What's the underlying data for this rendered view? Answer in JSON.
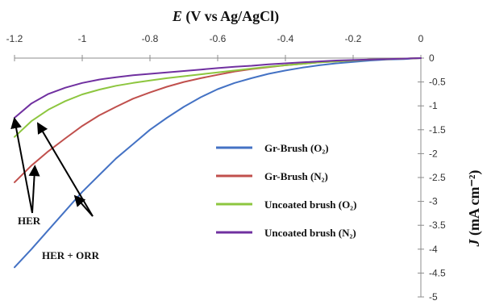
{
  "chart_data": {
    "type": "line",
    "title": "",
    "xlabel_italic": "E",
    "xlabel_rest": " (V vs Ag/AgCl)",
    "ylabel_italic": "J",
    "ylabel_rest": " (mA cm⁻²)",
    "xlim": [
      -1.2,
      0
    ],
    "ylim": [
      -5,
      0
    ],
    "x_ticks": [
      "-1.2",
      "-1",
      "-0.8",
      "-0.6",
      "-0.4",
      "-0.2",
      "0"
    ],
    "y_ticks": [
      "0",
      "-0.5",
      "-1",
      "-1.5",
      "-2",
      "-2.5",
      "-3",
      "-3.5",
      "-4",
      "-4.5",
      "-5"
    ],
    "series": [
      {
        "name": "Gr-Brush (O₂)",
        "color": "#4472c4",
        "points": [
          [
            -1.2,
            -4.38
          ],
          [
            -1.15,
            -4.0
          ],
          [
            -1.1,
            -3.6
          ],
          [
            -1.05,
            -3.2
          ],
          [
            -1.0,
            -2.8
          ],
          [
            -0.95,
            -2.45
          ],
          [
            -0.9,
            -2.1
          ],
          [
            -0.85,
            -1.8
          ],
          [
            -0.8,
            -1.5
          ],
          [
            -0.75,
            -1.25
          ],
          [
            -0.7,
            -1.02
          ],
          [
            -0.65,
            -0.82
          ],
          [
            -0.6,
            -0.65
          ],
          [
            -0.55,
            -0.52
          ],
          [
            -0.5,
            -0.42
          ],
          [
            -0.45,
            -0.33
          ],
          [
            -0.4,
            -0.26
          ],
          [
            -0.35,
            -0.2
          ],
          [
            -0.3,
            -0.15
          ],
          [
            -0.25,
            -0.11
          ],
          [
            -0.2,
            -0.08
          ],
          [
            -0.15,
            -0.05
          ],
          [
            -0.1,
            -0.03
          ],
          [
            -0.05,
            -0.02
          ],
          [
            0,
            0
          ]
        ]
      },
      {
        "name": "Gr-Brush (N₂)",
        "color": "#c0504d",
        "points": [
          [
            -1.2,
            -2.6
          ],
          [
            -1.15,
            -2.25
          ],
          [
            -1.1,
            -1.95
          ],
          [
            -1.05,
            -1.68
          ],
          [
            -1.0,
            -1.42
          ],
          [
            -0.95,
            -1.2
          ],
          [
            -0.9,
            -1.02
          ],
          [
            -0.85,
            -0.85
          ],
          [
            -0.8,
            -0.72
          ],
          [
            -0.75,
            -0.6
          ],
          [
            -0.7,
            -0.5
          ],
          [
            -0.65,
            -0.42
          ],
          [
            -0.6,
            -0.35
          ],
          [
            -0.55,
            -0.28
          ],
          [
            -0.5,
            -0.23
          ],
          [
            -0.45,
            -0.19
          ],
          [
            -0.4,
            -0.15
          ],
          [
            -0.35,
            -0.12
          ],
          [
            -0.3,
            -0.09
          ],
          [
            -0.25,
            -0.07
          ],
          [
            -0.2,
            -0.05
          ],
          [
            -0.15,
            -0.03
          ],
          [
            -0.1,
            -0.02
          ],
          [
            -0.05,
            -0.01
          ],
          [
            0,
            0
          ]
        ]
      },
      {
        "name": "Uncoated brush (O₂)",
        "color": "#8dc63f",
        "points": [
          [
            -1.2,
            -1.65
          ],
          [
            -1.15,
            -1.32
          ],
          [
            -1.1,
            -1.08
          ],
          [
            -1.05,
            -0.9
          ],
          [
            -1.0,
            -0.76
          ],
          [
            -0.95,
            -0.66
          ],
          [
            -0.9,
            -0.58
          ],
          [
            -0.85,
            -0.52
          ],
          [
            -0.8,
            -0.47
          ],
          [
            -0.75,
            -0.42
          ],
          [
            -0.7,
            -0.38
          ],
          [
            -0.65,
            -0.34
          ],
          [
            -0.6,
            -0.3
          ],
          [
            -0.55,
            -0.26
          ],
          [
            -0.5,
            -0.22
          ],
          [
            -0.45,
            -0.18
          ],
          [
            -0.4,
            -0.15
          ],
          [
            -0.35,
            -0.12
          ],
          [
            -0.3,
            -0.09
          ],
          [
            -0.25,
            -0.07
          ],
          [
            -0.2,
            -0.05
          ],
          [
            -0.15,
            -0.03
          ],
          [
            -0.1,
            -0.02
          ],
          [
            -0.05,
            -0.01
          ],
          [
            0,
            0
          ]
        ]
      },
      {
        "name": "Uncoated brush (N₂)",
        "color": "#7030a0",
        "points": [
          [
            -1.2,
            -1.25
          ],
          [
            -1.15,
            -0.95
          ],
          [
            -1.1,
            -0.75
          ],
          [
            -1.05,
            -0.62
          ],
          [
            -1.0,
            -0.52
          ],
          [
            -0.95,
            -0.45
          ],
          [
            -0.9,
            -0.4
          ],
          [
            -0.85,
            -0.36
          ],
          [
            -0.8,
            -0.33
          ],
          [
            -0.75,
            -0.3
          ],
          [
            -0.7,
            -0.27
          ],
          [
            -0.65,
            -0.24
          ],
          [
            -0.6,
            -0.21
          ],
          [
            -0.55,
            -0.18
          ],
          [
            -0.5,
            -0.16
          ],
          [
            -0.45,
            -0.13
          ],
          [
            -0.4,
            -0.11
          ],
          [
            -0.35,
            -0.09
          ],
          [
            -0.3,
            -0.07
          ],
          [
            -0.25,
            -0.05
          ],
          [
            -0.2,
            -0.04
          ],
          [
            -0.15,
            -0.03
          ],
          [
            -0.1,
            -0.02
          ],
          [
            -0.05,
            -0.01
          ],
          [
            0,
            0
          ]
        ]
      }
    ],
    "legend_position": "lower-right",
    "grid": false,
    "annotations": [
      {
        "text": "HER",
        "arrow_targets": [
          [
            -1.2,
            -1.28
          ],
          [
            -1.14,
            -2.28
          ]
        ]
      },
      {
        "text": "HER + ORR",
        "arrow_targets": [
          [
            -1.13,
            -1.38
          ],
          [
            -1.02,
            -2.9
          ]
        ]
      }
    ]
  }
}
